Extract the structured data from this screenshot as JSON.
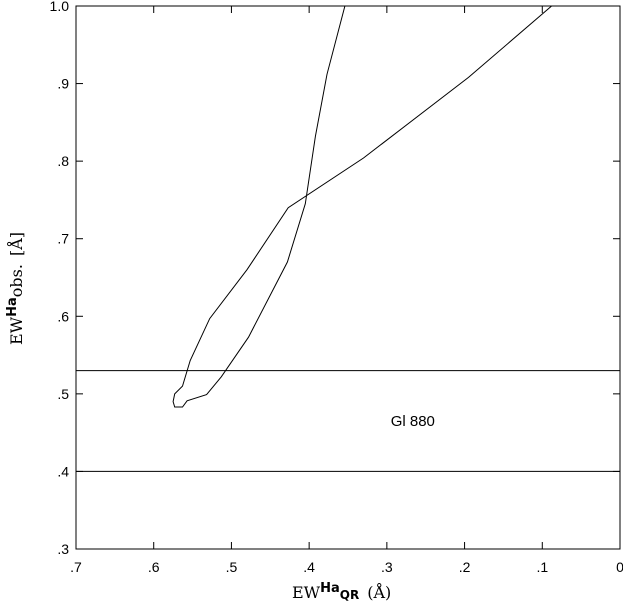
{
  "chart_data": {
    "type": "line",
    "xlabel": {
      "main": "EW",
      "sup": "Ha",
      "sub": "QR",
      "unit": "(Å)"
    },
    "ylabel": {
      "main": "EW",
      "sup": "Ha",
      "sub": "obs.",
      "unit": "[Å]"
    },
    "xlim": [
      0.7,
      0
    ],
    "ylim": [
      0.3,
      1.0
    ],
    "x_ticks": [
      0.7,
      0.6,
      0.5,
      0.4,
      0.3,
      0.2,
      0.1,
      0
    ],
    "x_tick_labels": [
      ".7",
      ".6",
      ".5",
      ".4",
      ".3",
      ".2",
      ".1",
      "0"
    ],
    "y_ticks": [
      0.3,
      0.4,
      0.5,
      0.6,
      0.7,
      0.8,
      0.9,
      1.0
    ],
    "y_tick_labels": [
      ".3",
      ".4",
      ".5",
      ".6",
      ".7",
      ".8",
      ".9",
      "1.0"
    ],
    "grid": false,
    "hlines": [
      0.53,
      0.4
    ],
    "annotation": {
      "text": "Gl 880",
      "x": 0.25,
      "y": 0.465
    },
    "series": [
      {
        "points": [
          [
            0.354,
            1.0
          ],
          [
            0.377,
            0.912
          ],
          [
            0.392,
            0.832
          ],
          [
            0.405,
            0.745
          ],
          [
            0.428,
            0.67
          ],
          [
            0.478,
            0.573
          ],
          [
            0.513,
            0.522
          ],
          [
            0.532,
            0.499
          ],
          [
            0.557,
            0.491
          ],
          [
            0.563,
            0.483
          ],
          [
            0.573,
            0.483
          ],
          [
            0.575,
            0.49
          ],
          [
            0.573,
            0.5
          ],
          [
            0.563,
            0.51
          ],
          [
            0.553,
            0.543
          ],
          [
            0.528,
            0.597
          ],
          [
            0.48,
            0.66
          ],
          [
            0.427,
            0.74
          ],
          [
            0.33,
            0.804
          ],
          [
            0.195,
            0.908
          ],
          [
            0.088,
            1.0
          ]
        ]
      }
    ]
  }
}
